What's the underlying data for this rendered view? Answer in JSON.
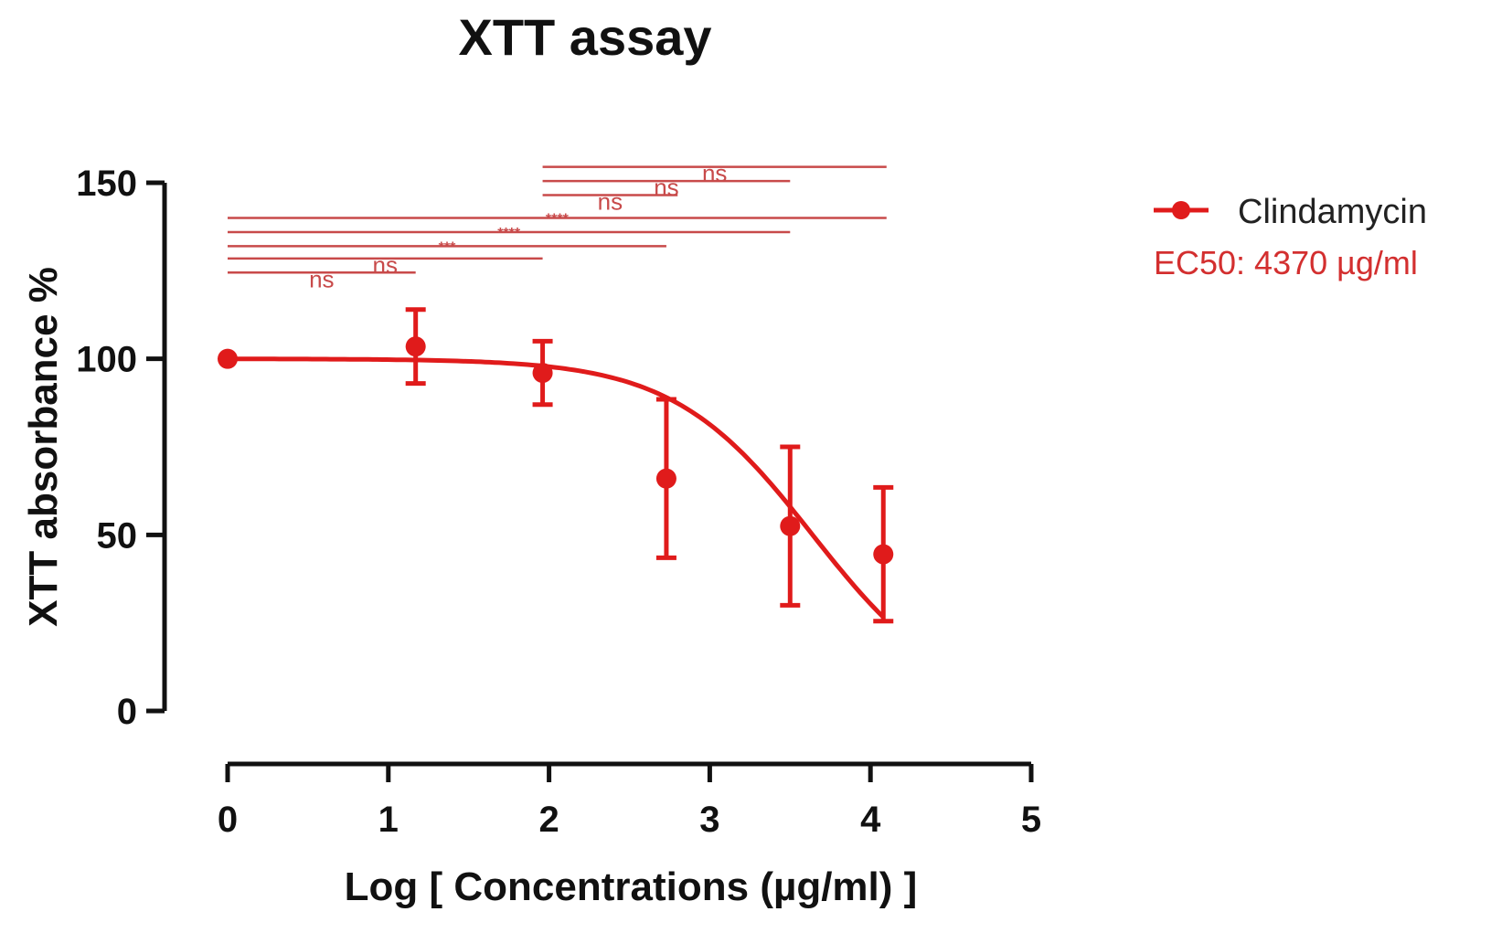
{
  "chart_data": {
    "type": "scatter",
    "title": "XTT assay",
    "xlabel": "Log [ Concentrations (µg/ml) ]",
    "ylabel": "XTT absorbance %",
    "xlim": [
      0,
      5
    ],
    "ylim": [
      0,
      150
    ],
    "xticks": [
      0,
      1,
      2,
      3,
      4,
      5
    ],
    "yticks": [
      0,
      50,
      100,
      150
    ],
    "grid": false,
    "legend_position": "top-right",
    "color": "#e01b1b",
    "series": [
      {
        "name": "Clindamycin",
        "points": [
          {
            "x": 0.0,
            "y": 100,
            "err": 0
          },
          {
            "x": 1.17,
            "y": 103.5,
            "err": 10.5
          },
          {
            "x": 1.96,
            "y": 96,
            "err": 9
          },
          {
            "x": 2.73,
            "y": 66,
            "err": 22.5
          },
          {
            "x": 3.5,
            "y": 52.5,
            "err": 22.5
          },
          {
            "x": 4.08,
            "y": 44.5,
            "err": 19
          }
        ],
        "fit_curve": {
          "top": 100,
          "bottom": 0,
          "logEC50": 3.64,
          "hill": 1.0,
          "x_range": [
            0,
            4.08
          ]
        }
      }
    ],
    "ec50_label": "EC50: 4370 µg/ml",
    "comparisons": [
      {
        "x1": 0.0,
        "x2": 4.1,
        "y": 140,
        "label": "****"
      },
      {
        "x1": 0.0,
        "x2": 3.5,
        "y": 136,
        "label": "****"
      },
      {
        "x1": 0.0,
        "x2": 2.73,
        "y": 132,
        "label": "***"
      },
      {
        "x1": 0.0,
        "x2": 1.96,
        "y": 128.5,
        "label": "ns"
      },
      {
        "x1": 0.0,
        "x2": 1.17,
        "y": 124.5,
        "label": "ns"
      },
      {
        "x1": 1.96,
        "x2": 2.8,
        "y": 146.5,
        "label": "ns"
      },
      {
        "x1": 1.96,
        "x2": 3.5,
        "y": 150.5,
        "label": "ns"
      },
      {
        "x1": 1.96,
        "x2": 4.1,
        "y": 154.5,
        "label": "ns"
      }
    ]
  }
}
